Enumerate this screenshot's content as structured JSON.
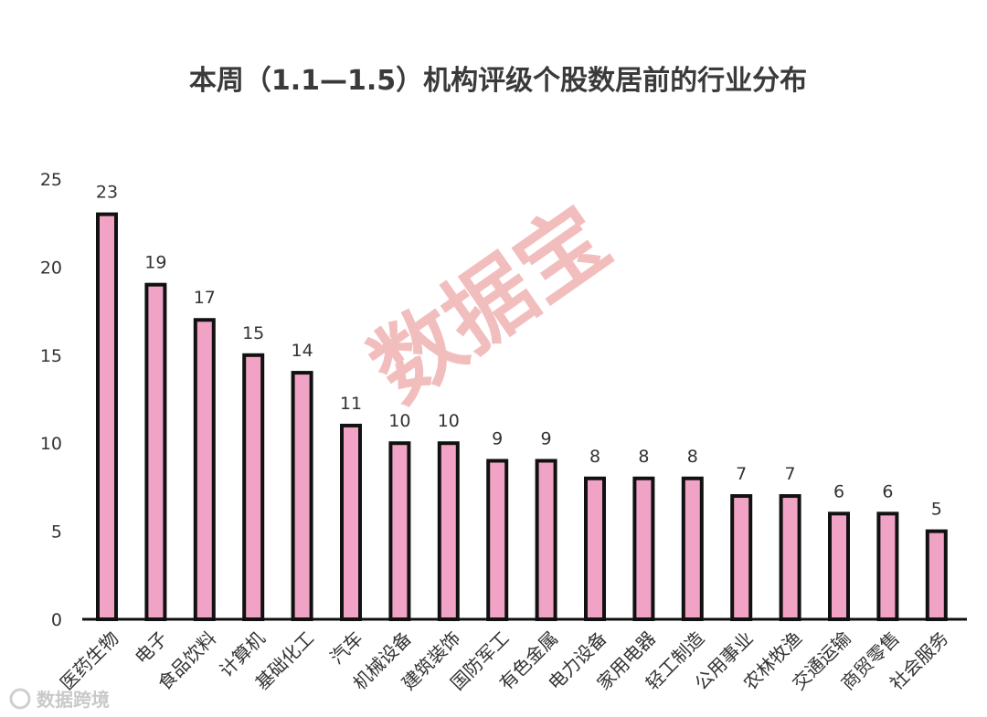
{
  "chart_data": {
    "type": "bar",
    "title": "本周（1.1—1.5）机构评级个股数居前的行业分布",
    "categories": [
      "医药生物",
      "电子",
      "食品饮料",
      "计算机",
      "基础化工",
      "汽车",
      "机械设备",
      "建筑装饰",
      "国防军工",
      "有色金属",
      "电力设备",
      "家用电器",
      "轻工制造",
      "公用事业",
      "农林牧渔",
      "交通运输",
      "商贸零售",
      "社会服务"
    ],
    "values": [
      23,
      19,
      17,
      15,
      14,
      11,
      10,
      10,
      9,
      9,
      8,
      8,
      8,
      7,
      7,
      6,
      6,
      5
    ],
    "yticks": [
      "0",
      "5",
      "10",
      "15",
      "20",
      "25"
    ],
    "ylim": [
      0,
      25
    ],
    "bar_color": "#f0a3c4",
    "bar_border": "#111111",
    "grid": false,
    "legend": "none"
  },
  "watermark": "数据宝",
  "source_logo": "数据跨境"
}
